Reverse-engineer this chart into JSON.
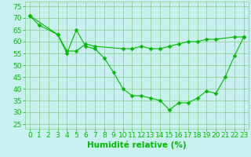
{
  "line1_x": [
    0,
    1,
    3,
    4,
    5,
    6,
    7,
    8,
    9,
    10,
    11,
    12,
    13,
    14,
    15,
    16,
    17,
    18,
    19,
    20,
    21,
    22,
    23
  ],
  "line1_y": [
    71,
    67,
    63,
    55,
    65,
    58,
    57,
    53,
    47,
    40,
    37,
    37,
    36,
    35,
    31,
    34,
    34,
    36,
    39,
    38,
    45,
    54,
    62
  ],
  "line2_x": [
    0,
    3,
    4,
    5,
    6,
    7,
    10,
    11,
    12,
    13,
    14,
    15,
    16,
    17,
    18,
    19,
    20,
    22,
    23
  ],
  "line2_y": [
    71,
    63,
    56,
    56,
    59,
    58,
    57,
    57,
    58,
    57,
    57,
    58,
    59,
    60,
    60,
    61,
    61,
    62,
    62
  ],
  "line_color": "#00bb00",
  "bg_color": "#c8f0ee",
  "grid_color": "#88cc88",
  "xlabel": "Humidité relative (%)",
  "xlim": [
    -0.5,
    23.5
  ],
  "ylim": [
    23,
    77
  ],
  "yticks": [
    25,
    30,
    35,
    40,
    45,
    50,
    55,
    60,
    65,
    70,
    75
  ],
  "xticks": [
    0,
    1,
    2,
    3,
    4,
    5,
    6,
    7,
    8,
    9,
    10,
    11,
    12,
    13,
    14,
    15,
    16,
    17,
    18,
    19,
    20,
    21,
    22,
    23
  ],
  "tick_fontsize": 6.5,
  "xlabel_fontsize": 7.5
}
